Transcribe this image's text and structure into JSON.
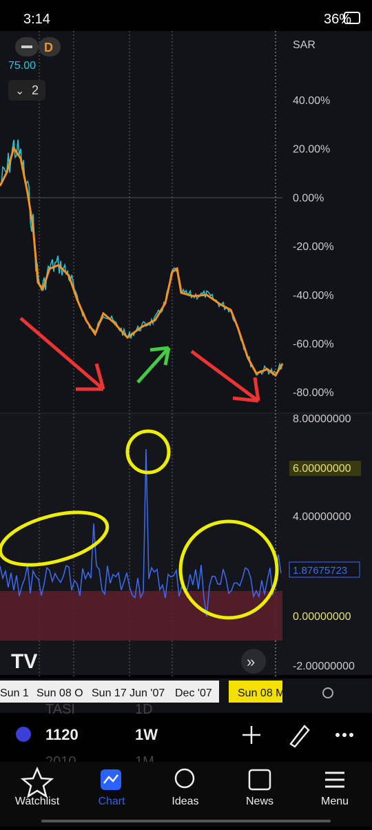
{
  "status_bar": {
    "time": "3:14",
    "battery": "36%"
  },
  "chart": {
    "interval": "D",
    "currency": "SAR",
    "price_label": "75.00",
    "pane_count": "2",
    "price_axis": [
      "40.00%",
      "20.00%",
      "0.00%",
      "-20.00%",
      "-40.00%",
      "-60.00%",
      "-80.00%"
    ],
    "indicator_axis": [
      "8.00000000",
      "6.00000000",
      "4.00000000",
      "0.00000000",
      "-2.00000000"
    ],
    "indicator_value": "1.87675723",
    "time_axis": [
      "Sun 1",
      "Sun 08 O",
      "Sun 17 Jun '07",
      "Dec '07"
    ],
    "time_cursor": "Sun 08 M"
  },
  "symbol_bar": {
    "symbol_above": "TASI",
    "symbol": "1120",
    "symbol_below": "2010",
    "interval_above": "1D",
    "interval": "1W",
    "interval_below": "1M"
  },
  "nav": [
    "Watchlist",
    "Chart",
    "Ideas",
    "News",
    "Menu"
  ]
}
